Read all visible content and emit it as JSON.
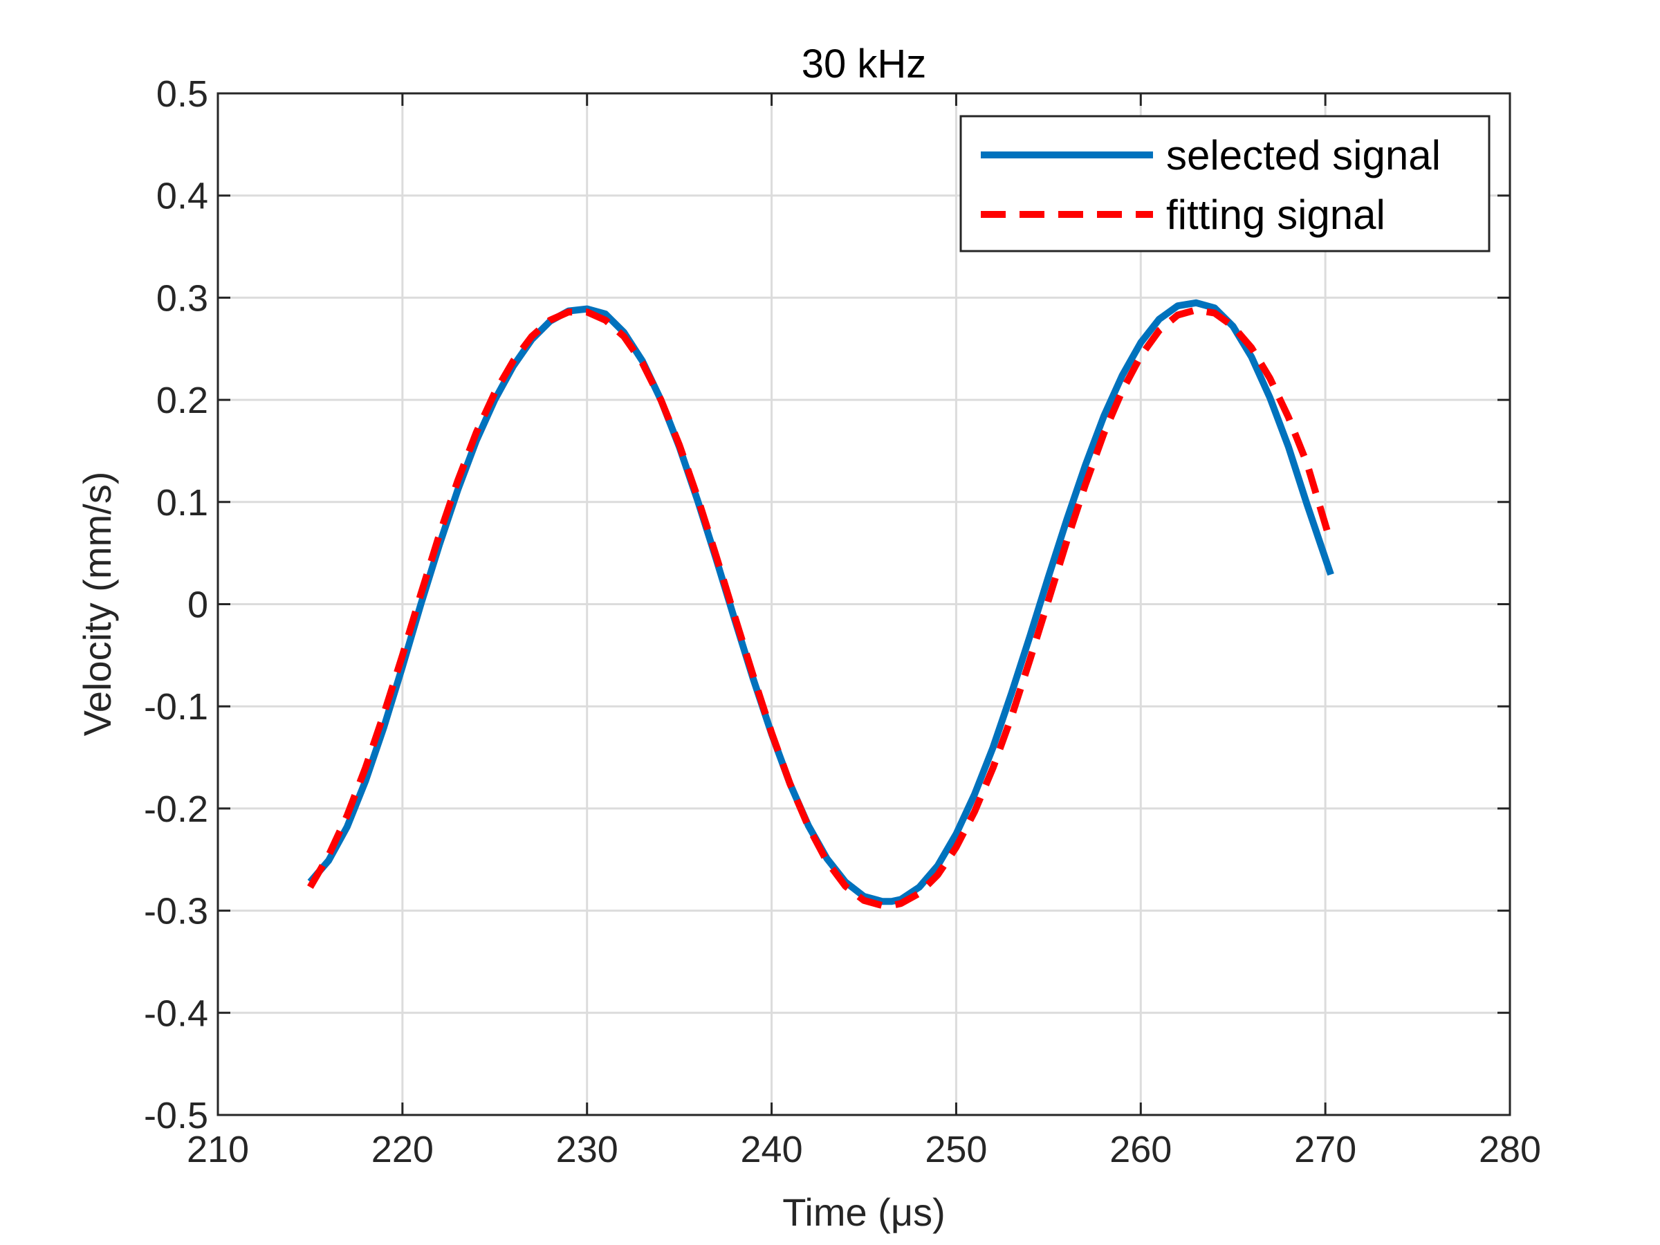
{
  "chart_data": {
    "type": "line",
    "title": "30 kHz",
    "xlabel": "Time (μs)",
    "ylabel": "Velocity (mm/s)",
    "xlim": [
      210,
      280
    ],
    "ylim": [
      -0.5,
      0.5
    ],
    "xticks": [
      210,
      220,
      230,
      240,
      250,
      260,
      270,
      280
    ],
    "xtick_labels": [
      "210",
      "220",
      "230",
      "240",
      "250",
      "260",
      "270",
      "280"
    ],
    "yticks": [
      -0.5,
      -0.4,
      -0.3,
      -0.2,
      -0.1,
      0,
      0.1,
      0.2,
      0.3,
      0.4,
      0.5
    ],
    "ytick_labels": [
      "-0.5",
      "-0.4",
      "-0.3",
      "-0.2",
      "-0.1",
      "0",
      "0.1",
      "0.2",
      "0.3",
      "0.4",
      "0.5"
    ],
    "grid": true,
    "legend_position": "top-right",
    "series": [
      {
        "name": "selected signal",
        "color": "#0072BD",
        "style": "solid",
        "x": [
          215.0,
          216.0,
          217.0,
          218.0,
          219.0,
          220.0,
          221.0,
          222.0,
          223.0,
          224.0,
          225.0,
          226.0,
          227.0,
          228.0,
          229.0,
          230.0,
          231.0,
          232.0,
          233.0,
          234.0,
          235.0,
          236.0,
          237.0,
          238.0,
          239.0,
          240.0,
          241.0,
          242.0,
          243.0,
          244.0,
          245.0,
          246.0,
          246.5,
          247.0,
          248.0,
          249.0,
          250.0,
          251.0,
          252.0,
          253.0,
          254.0,
          255.0,
          256.0,
          257.0,
          258.0,
          259.0,
          260.0,
          261.0,
          262.0,
          263.0,
          264.0,
          265.0,
          266.0,
          267.0,
          268.0,
          269.0,
          270.3
        ],
        "y": [
          -0.272,
          -0.251,
          -0.218,
          -0.173,
          -0.12,
          -0.061,
          0.0,
          0.058,
          0.112,
          0.16,
          0.2,
          0.233,
          0.259,
          0.277,
          0.287,
          0.289,
          0.284,
          0.266,
          0.238,
          0.2,
          0.154,
          0.101,
          0.044,
          -0.015,
          -0.073,
          -0.127,
          -0.176,
          -0.217,
          -0.249,
          -0.272,
          -0.286,
          -0.291,
          -0.291,
          -0.289,
          -0.277,
          -0.256,
          -0.225,
          -0.186,
          -0.14,
          -0.087,
          -0.031,
          0.027,
          0.083,
          0.136,
          0.184,
          0.224,
          0.256,
          0.279,
          0.292,
          0.295,
          0.29,
          0.272,
          0.242,
          0.202,
          0.154,
          0.098,
          0.029
        ]
      },
      {
        "name": "fitting signal",
        "color": "#FF0000",
        "style": "dashed",
        "x": [
          215.0,
          216.0,
          217.0,
          218.0,
          219.0,
          220.0,
          221.0,
          222.0,
          223.0,
          224.0,
          225.0,
          226.0,
          227.0,
          228.0,
          229.0,
          230.0,
          231.0,
          232.0,
          233.0,
          234.0,
          235.0,
          236.0,
          237.0,
          238.0,
          239.0,
          240.0,
          241.0,
          242.0,
          243.0,
          244.0,
          245.0,
          246.0,
          246.5,
          247.0,
          248.0,
          249.0,
          250.0,
          251.0,
          252.0,
          253.0,
          254.0,
          255.0,
          256.0,
          257.0,
          258.0,
          259.0,
          260.0,
          261.0,
          262.0,
          263.0,
          264.0,
          265.0,
          266.0,
          267.0,
          268.0,
          269.0,
          270.3
        ],
        "y": [
          -0.277,
          -0.246,
          -0.207,
          -0.16,
          -0.107,
          -0.05,
          0.01,
          0.068,
          0.121,
          0.168,
          0.207,
          0.238,
          0.262,
          0.278,
          0.286,
          0.286,
          0.278,
          0.262,
          0.236,
          0.2,
          0.156,
          0.104,
          0.047,
          -0.012,
          -0.07,
          -0.126,
          -0.176,
          -0.218,
          -0.252,
          -0.276,
          -0.29,
          -0.295,
          -0.295,
          -0.293,
          -0.283,
          -0.265,
          -0.238,
          -0.203,
          -0.16,
          -0.11,
          -0.054,
          0.004,
          0.062,
          0.117,
          0.167,
          0.209,
          0.243,
          0.268,
          0.283,
          0.288,
          0.285,
          0.272,
          0.251,
          0.221,
          0.183,
          0.138,
          0.06
        ]
      }
    ]
  }
}
